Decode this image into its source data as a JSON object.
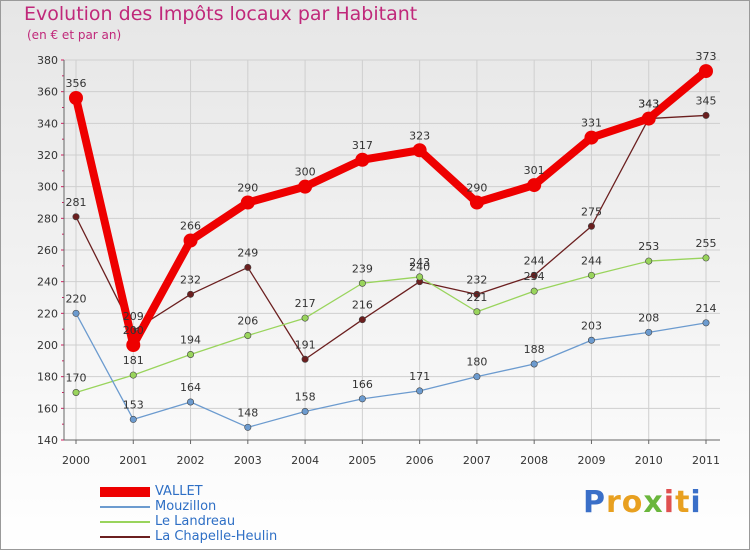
{
  "header": {
    "title": "Evolution des Impôts locaux par Habitant",
    "subtitle": "(en € et par an)"
  },
  "logo": {
    "text": "Proxiti",
    "letters": [
      "P",
      "r",
      "o",
      "x",
      "i",
      "t",
      "i"
    ]
  },
  "colors": {
    "title": "#c0287a",
    "axis_text": "#333333",
    "legend_text": "#2e6fc5",
    "grid": "#cfcfcf"
  },
  "chart_data": {
    "type": "line",
    "title": "Evolution des Impôts locaux par Habitant",
    "ylabel": "(en € et par an)",
    "xlabel": "",
    "ylim": [
      140,
      380
    ],
    "yticks": [
      140,
      160,
      180,
      200,
      220,
      240,
      260,
      280,
      300,
      320,
      340,
      360,
      380
    ],
    "grid": true,
    "legend_position": "bottom-left",
    "categories": [
      "2000",
      "2001",
      "2002",
      "2003",
      "2004",
      "2005",
      "2006",
      "2007",
      "2008",
      "2009",
      "2010",
      "2011"
    ],
    "series": [
      {
        "name": "La Chapelle-Heulin",
        "color": "#6b1f1f",
        "values": [
          281,
          209,
          232,
          249,
          191,
          216,
          240,
          232,
          244,
          275,
          343,
          345
        ],
        "labels": [
          "281",
          "209",
          "232",
          "249",
          "191",
          "216",
          "240",
          "232",
          "244",
          "275",
          "343",
          "345"
        ]
      },
      {
        "name": "Le Landreau",
        "color": "#99d45c",
        "values": [
          170,
          181,
          194,
          206,
          217,
          239,
          243,
          221,
          234,
          244,
          253,
          255
        ],
        "labels": [
          "170",
          "181",
          "194",
          "206",
          "217",
          "239",
          "243",
          "221",
          "234",
          "244",
          "253",
          "255"
        ]
      },
      {
        "name": "Mouzillon",
        "color": "#6c9bcf",
        "values": [
          220,
          153,
          164,
          148,
          158,
          166,
          171,
          180,
          188,
          203,
          208,
          214
        ],
        "labels": [
          "220",
          "153",
          "164",
          "148",
          "158",
          "166",
          "171",
          "180",
          "188",
          "203",
          "208",
          "214"
        ]
      },
      {
        "name": "VALLET",
        "color": "#ee0000",
        "values": [
          356,
          200,
          266,
          290,
          300,
          317,
          323,
          290,
          301,
          331,
          343,
          373
        ],
        "labels": [
          "356",
          "200",
          "266",
          "290",
          "300",
          "317",
          "323",
          "290",
          "301",
          "331",
          "343",
          "373"
        ]
      }
    ],
    "legend": [
      "VALLET",
      "Mouzillon",
      "Le Landreau",
      "La Chapelle-Heulin"
    ]
  }
}
